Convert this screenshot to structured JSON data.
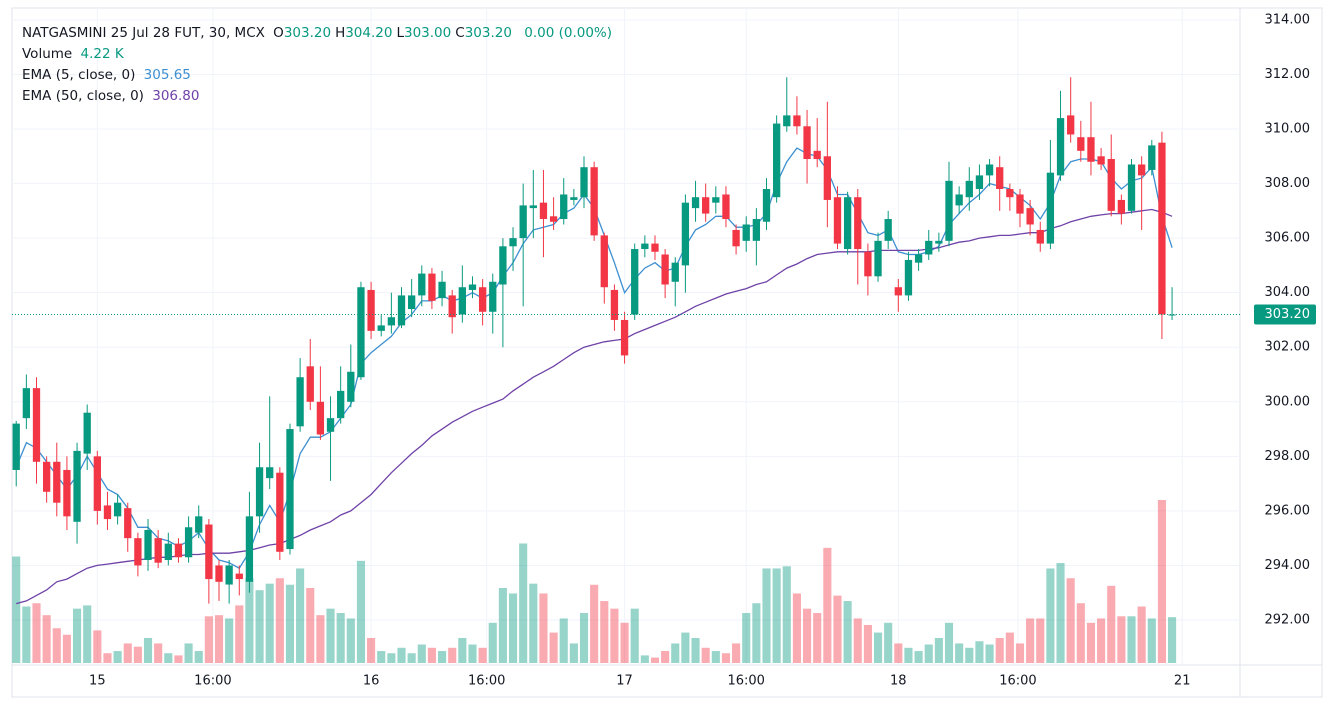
{
  "chart_data": {
    "type": "candlestick",
    "title": "NATGASMINI 25 Jul 28 FUT, 30, MCX",
    "ohlc_legend": [
      {
        "key": "O",
        "value": "303.20"
      },
      {
        "key": "H",
        "value": "304.20"
      },
      {
        "key": "L",
        "value": "303.00"
      },
      {
        "key": "C",
        "value": "303.20"
      }
    ],
    "change": "0.00 (0.00%)",
    "up_color": "#089981",
    "down_color": "#f23645",
    "candles": [
      [
        297.5,
        299.3,
        296.9,
        299.2
      ],
      [
        299.4,
        301,
        299,
        300.5
      ],
      [
        300.5,
        300.9,
        297,
        297.8
      ],
      [
        297.8,
        298,
        296.3,
        296.7
      ],
      [
        297.8,
        298.5,
        295.8,
        296.3
      ],
      [
        297.5,
        298,
        295.3,
        295.8
      ],
      [
        295.6,
        298.5,
        294.8,
        298.2
      ],
      [
        298.1,
        299.9,
        297.5,
        299.6
      ],
      [
        298,
        298.2,
        295.5,
        296
      ],
      [
        296.2,
        296.7,
        295.3,
        295.7
      ],
      [
        295.8,
        296.6,
        295.5,
        296.3
      ],
      [
        296.1,
        296.3,
        294.5,
        295
      ],
      [
        295,
        295.2,
        293.6,
        294
      ],
      [
        294.2,
        295.7,
        293.8,
        295.3
      ],
      [
        295,
        295.3,
        293.9,
        294.1
      ],
      [
        294.2,
        295.2,
        294,
        294.8
      ],
      [
        294.8,
        295,
        294.1,
        294.3
      ],
      [
        294.3,
        295.8,
        294.1,
        295.4
      ],
      [
        295.2,
        296.2,
        295,
        295.8
      ],
      [
        295.5,
        295.7,
        292.6,
        293.5
      ],
      [
        294,
        294.2,
        292.7,
        293.4
      ],
      [
        293.3,
        294.2,
        292.6,
        294
      ],
      [
        293.7,
        294,
        292.9,
        293.5
      ],
      [
        293.4,
        296.7,
        293,
        295.8
      ],
      [
        295.8,
        298.5,
        295.2,
        297.6
      ],
      [
        297.2,
        300.2,
        296.8,
        297.6
      ],
      [
        297.4,
        297.6,
        294.2,
        294.5
      ],
      [
        294.6,
        299.2,
        294.4,
        299
      ],
      [
        299.1,
        301.6,
        298.9,
        300.9
      ],
      [
        301.3,
        302.3,
        299.7,
        300
      ],
      [
        300,
        301.3,
        298.6,
        298.8
      ],
      [
        298.9,
        300.2,
        297.1,
        299.4
      ],
      [
        299.4,
        301.3,
        299.2,
        300.4
      ],
      [
        300,
        302.1,
        299.8,
        301.1
      ],
      [
        300.9,
        304.4,
        300.8,
        304.2
      ],
      [
        304.1,
        304.4,
        302.3,
        302.6
      ],
      [
        302.6,
        303.2,
        302.4,
        302.8
      ],
      [
        302.8,
        304,
        302.5,
        303.1
      ],
      [
        302.8,
        304.2,
        302.7,
        303.9
      ],
      [
        303.4,
        304.5,
        303.1,
        303.9
      ],
      [
        303.9,
        305,
        303.5,
        304.7
      ],
      [
        304.7,
        304.9,
        303.4,
        303.7
      ],
      [
        303.8,
        304.8,
        303.5,
        304.4
      ],
      [
        303.9,
        304.1,
        302.5,
        303.1
      ],
      [
        303.2,
        305,
        302.9,
        304.2
      ],
      [
        304.1,
        304.6,
        303.8,
        304.3
      ],
      [
        304.2,
        304.5,
        302.8,
        303.3
      ],
      [
        303.3,
        304.7,
        302.5,
        304.4
      ],
      [
        304.3,
        306,
        302,
        305.7
      ],
      [
        305.7,
        306.4,
        304.8,
        306
      ],
      [
        306,
        308,
        303.5,
        307.2
      ],
      [
        307.1,
        308.5,
        306,
        307.2
      ],
      [
        307.3,
        308.5,
        305.3,
        306.7
      ],
      [
        306.8,
        307.5,
        306.3,
        306.6
      ],
      [
        306.7,
        308.2,
        306.5,
        307.6
      ],
      [
        307.4,
        307.8,
        307.2,
        307.5
      ],
      [
        307.5,
        309,
        307.1,
        308.6
      ],
      [
        308.6,
        308.8,
        305.9,
        306.1
      ],
      [
        306.1,
        306.2,
        303.6,
        304.2
      ],
      [
        304.1,
        304.3,
        302.6,
        303
      ],
      [
        303,
        303.3,
        301.4,
        301.7
      ],
      [
        303.2,
        305.8,
        303,
        305.6
      ],
      [
        305.6,
        306.1,
        305.3,
        305.8
      ],
      [
        305.8,
        306.1,
        305.2,
        305.5
      ],
      [
        305.4,
        305.6,
        303.8,
        304.3
      ],
      [
        304.4,
        305.3,
        303.5,
        305.1
      ],
      [
        305,
        307.6,
        304,
        307.3
      ],
      [
        307.1,
        308.1,
        306.6,
        307.5
      ],
      [
        307.5,
        308,
        306.6,
        306.9
      ],
      [
        307.3,
        307.9,
        306.9,
        307.5
      ],
      [
        307.6,
        307.9,
        306.4,
        306.7
      ],
      [
        306.3,
        306.5,
        305.4,
        305.7
      ],
      [
        305.9,
        306.8,
        305.5,
        306.5
      ],
      [
        305.9,
        307.1,
        305,
        306.7
      ],
      [
        306.6,
        308.2,
        306.3,
        307.8
      ],
      [
        307.5,
        310.5,
        307.3,
        310.2
      ],
      [
        310.1,
        311.9,
        309.9,
        310.5
      ],
      [
        310.5,
        311.2,
        309.8,
        310.1
      ],
      [
        310.1,
        310.7,
        308,
        308.9
      ],
      [
        309.2,
        310.4,
        308.6,
        308.9
      ],
      [
        309,
        311,
        306.4,
        307.4
      ],
      [
        307.5,
        307.9,
        305.6,
        305.8
      ],
      [
        305.6,
        307.7,
        305.4,
        307.5
      ],
      [
        307.5,
        307.8,
        304.3,
        305.6
      ],
      [
        305.5,
        305.8,
        303.9,
        304.6
      ],
      [
        304.6,
        306.2,
        304.4,
        305.9
      ],
      [
        305.9,
        307,
        305.6,
        306.7
      ],
      [
        304.2,
        304.5,
        303.3,
        303.9
      ],
      [
        303.9,
        305.5,
        303.7,
        305.2
      ],
      [
        305.1,
        305.6,
        304.8,
        305.4
      ],
      [
        305.4,
        306.3,
        305.2,
        305.9
      ],
      [
        305.8,
        306.2,
        305.5,
        305.9
      ],
      [
        305.9,
        308.8,
        305.7,
        308.1
      ],
      [
        307.2,
        307.9,
        306.9,
        307.6
      ],
      [
        307.5,
        308.6,
        307,
        308.1
      ],
      [
        307.8,
        308.7,
        307.4,
        308.3
      ],
      [
        308.3,
        308.9,
        307.9,
        308.7
      ],
      [
        308.6,
        309,
        307,
        307.8
      ],
      [
        307.8,
        308,
        307,
        307.5
      ],
      [
        307.6,
        307.8,
        306.4,
        306.9
      ],
      [
        307.1,
        307.4,
        306.1,
        306.5
      ],
      [
        306.3,
        306.6,
        305.5,
        305.8
      ],
      [
        305.8,
        309.6,
        305.6,
        308.4
      ],
      [
        308.3,
        311.4,
        308.1,
        310.4
      ],
      [
        310.5,
        311.9,
        309.5,
        309.8
      ],
      [
        309.7,
        310.3,
        308.8,
        309.2
      ],
      [
        309.7,
        311,
        308.3,
        308.8
      ],
      [
        309,
        309.3,
        308.5,
        308.7
      ],
      [
        308.9,
        309.8,
        306.8,
        307
      ],
      [
        307.4,
        307.6,
        306.5,
        306.9
      ],
      [
        307,
        308.9,
        306.9,
        308.7
      ],
      [
        308.7,
        309,
        306.3,
        308.3
      ],
      [
        308.5,
        309.6,
        308.3,
        309.4
      ],
      [
        309.5,
        309.9,
        302.3,
        303.2
      ],
      [
        303.2,
        304.2,
        303,
        303.2
      ]
    ],
    "volume": {
      "name": "Volume",
      "value_label": "4.22 K",
      "values": [
        9.8,
        5.2,
        5.5,
        4.4,
        3.2,
        2.6,
        5,
        5.3,
        3,
        0.9,
        1.1,
        1.8,
        1.5,
        2.3,
        1.8,
        0.9,
        0.7,
        1.8,
        1.1,
        4.3,
        4.4,
        4.1,
        5.3,
        7.8,
        6.7,
        7.3,
        7.8,
        7.2,
        8.7,
        6.9,
        4.4,
        5,
        4.6,
        4.1,
        9.4,
        2.3,
        1.1,
        0.9,
        1.4,
        0.9,
        1.7,
        1.4,
        1.1,
        1.4,
        2.3,
        1.7,
        1.4,
        3.7,
        6.9,
        6.4,
        11,
        7.3,
        6.4,
        2.8,
        4.1,
        1.8,
        4.6,
        7.2,
        5.7,
        5,
        3.7,
        5,
        0.7,
        0.5,
        1.1,
        1.8,
        2.8,
        2.3,
        1.4,
        1.1,
        0.9,
        1.8,
        4.6,
        5.5,
        8.7,
        8.7,
        8.9,
        6.4,
        5,
        4.6,
        10.6,
        6.2,
        5.7,
        4.1,
        3.5,
        2.8,
        3.7,
        1.8,
        1.4,
        1.1,
        1.7,
        2.3,
        3.7,
        1.8,
        1.4,
        2,
        1.7,
        2.3,
        2.8,
        1.8,
        4.1,
        4.1,
        8.7,
        9.2,
        7.8,
        5.5,
        3.7,
        4.1,
        7.1,
        4.3,
        4.3,
        5.2,
        4.1,
        15,
        4.22
      ]
    },
    "series": [
      {
        "name": "EMA (5, close, 0)",
        "color": "#3d8fd1",
        "value_label": "305.65",
        "values": [
          297.6,
          298.5,
          298.3,
          297.8,
          297.3,
          296.8,
          297.3,
          298.0,
          297.4,
          296.8,
          296.6,
          296.1,
          295.4,
          295.4,
          295.0,
          294.9,
          294.7,
          294.9,
          295.2,
          294.6,
          294.2,
          294.1,
          293.9,
          294.5,
          295.5,
          296.2,
          295.6,
          296.7,
          298.1,
          298.7,
          298.7,
          298.9,
          299.4,
          299.9,
          301.4,
          301.8,
          302.1,
          302.4,
          302.9,
          303.2,
          303.7,
          303.7,
          303.9,
          303.7,
          303.8,
          304.0,
          303.8,
          304.0,
          304.6,
          305.1,
          305.8,
          306.3,
          306.4,
          306.5,
          306.9,
          307.1,
          307.6,
          307.1,
          306.1,
          305.1,
          304.0,
          304.5,
          304.9,
          305.1,
          304.8,
          304.9,
          305.7,
          306.3,
          306.5,
          306.8,
          306.8,
          306.4,
          306.4,
          306.5,
          306.9,
          308.0,
          308.8,
          309.3,
          309.1,
          309.0,
          308.5,
          307.6,
          307.6,
          306.9,
          306.2,
          306.1,
          306.3,
          305.5,
          305.4,
          305.4,
          305.5,
          305.7,
          306.5,
          306.9,
          307.3,
          307.6,
          308.0,
          307.9,
          307.8,
          307.5,
          307.2,
          306.7,
          307.3,
          308.3,
          308.8,
          308.9,
          308.9,
          308.8,
          308.2,
          307.8,
          308.1,
          308.2,
          308.6,
          306.8,
          305.65
        ]
      },
      {
        "name": "EMA (50, close, 0)",
        "color": "#6f42a8",
        "value_label": "306.80",
        "values": [
          292.6,
          292.7,
          292.9,
          293.1,
          293.4,
          293.5,
          293.7,
          293.9,
          294.0,
          294.05,
          294.1,
          294.15,
          294.2,
          294.25,
          294.3,
          294.3,
          294.35,
          294.4,
          294.4,
          294.45,
          294.45,
          294.45,
          294.5,
          294.55,
          294.65,
          294.75,
          294.8,
          294.95,
          295.1,
          295.3,
          295.45,
          295.6,
          295.85,
          296.0,
          296.3,
          296.6,
          297.0,
          297.4,
          297.75,
          298.1,
          298.4,
          298.75,
          299.0,
          299.25,
          299.45,
          299.65,
          299.8,
          299.95,
          300.1,
          300.4,
          300.65,
          300.9,
          301.1,
          301.3,
          301.55,
          301.8,
          302.0,
          302.1,
          302.2,
          302.25,
          302.3,
          302.5,
          302.65,
          302.8,
          302.95,
          303.1,
          303.3,
          303.5,
          303.65,
          303.8,
          303.95,
          304.05,
          304.15,
          304.3,
          304.4,
          304.65,
          304.9,
          305.05,
          305.25,
          305.4,
          305.45,
          305.5,
          305.5,
          305.5,
          305.5,
          305.55,
          305.55,
          305.55,
          305.55,
          305.55,
          305.6,
          305.65,
          305.75,
          305.85,
          305.9,
          306.0,
          306.05,
          306.1,
          306.1,
          306.15,
          306.2,
          306.2,
          306.35,
          306.45,
          306.6,
          306.7,
          306.8,
          306.85,
          306.9,
          306.9,
          306.95,
          307.0,
          307.05,
          306.95,
          306.8
        ]
      }
    ],
    "last_price": {
      "value": 303.2,
      "label": "303.20"
    },
    "xlim": [
      -1.6,
      120.7
    ],
    "xticks": [
      {
        "value": 8,
        "label": "15"
      },
      {
        "value": 19.4,
        "label": "16:00"
      },
      {
        "value": 35,
        "label": "16"
      },
      {
        "value": 46.4,
        "label": "16:00"
      },
      {
        "value": 60,
        "label": "17"
      },
      {
        "value": 72,
        "label": "16:00"
      },
      {
        "value": 87,
        "label": "18"
      },
      {
        "value": 98.8,
        "label": "16:00"
      },
      {
        "value": 115,
        "label": "21"
      }
    ],
    "ylim": [
      290.35,
      314.73
    ],
    "yticks": [
      {
        "value": 292,
        "label": "292.00"
      },
      {
        "value": 294,
        "label": "294.00"
      },
      {
        "value": 296,
        "label": "296.00"
      },
      {
        "value": 298,
        "label": "298.00"
      },
      {
        "value": 300,
        "label": "300.00"
      },
      {
        "value": 302,
        "label": "302.00"
      },
      {
        "value": 304,
        "label": "304.00"
      },
      {
        "value": 306,
        "label": "306.00"
      },
      {
        "value": 308,
        "label": "308.00"
      },
      {
        "value": 310,
        "label": "310.00"
      },
      {
        "value": 312,
        "label": "312.00"
      },
      {
        "value": 314,
        "label": "314.00"
      }
    ],
    "grid": true
  }
}
